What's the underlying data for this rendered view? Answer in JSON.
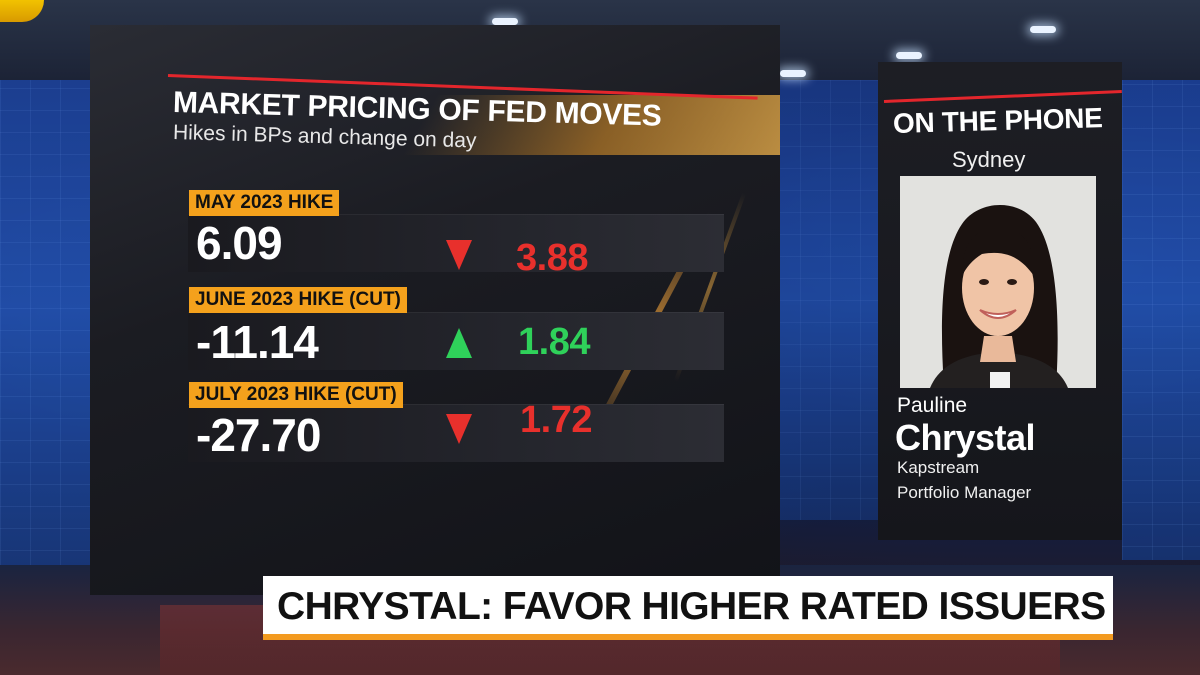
{
  "graphic": {
    "title": "MARKET PRICING OF FED MOVES",
    "subtitle": "Hikes in BPs and change on day",
    "rows": [
      {
        "label": "MAY 2023 HIKE",
        "value": "6.09",
        "direction": "down",
        "change": "3.88",
        "change_color": "#e8302c"
      },
      {
        "label": "JUNE 2023 HIKE (CUT)",
        "value": "-11.14",
        "direction": "up",
        "change": "1.84",
        "change_color": "#2fd15a"
      },
      {
        "label": "JULY 2023 HIKE (CUT)",
        "value": "-27.70",
        "direction": "down",
        "change": "1.72",
        "change_color": "#e8302c"
      }
    ],
    "accent_color": "#f4a11c",
    "rule_color": "#e3262c"
  },
  "guest": {
    "header": "ON THE PHONE",
    "location": "Sydney",
    "first_name": "Pauline",
    "last_name": "Chrystal",
    "organization": "Kapstream",
    "role": "Portfolio Manager"
  },
  "lower_third": {
    "headline": "CHRYSTAL: FAVOR HIGHER RATED ISSUERS",
    "accent_color": "#f39a1f"
  }
}
